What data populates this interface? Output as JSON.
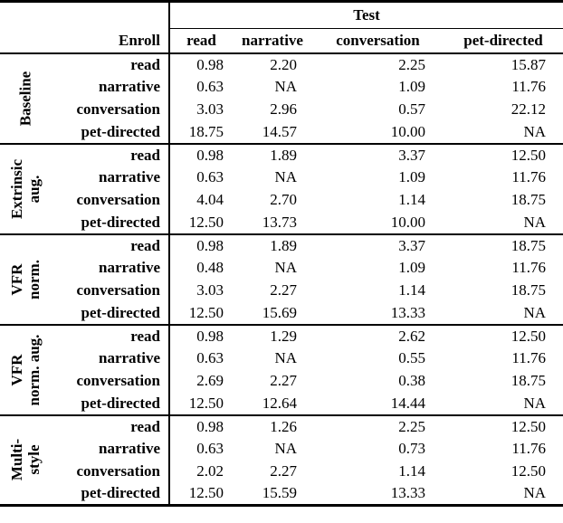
{
  "table": {
    "test_header": "Test",
    "enroll_header": "Enroll",
    "test_columns": [
      "read",
      "narrative",
      "conversation",
      "pet-directed"
    ],
    "groups": [
      {
        "label_lines": [
          "Baseline",
          ""
        ],
        "rows": [
          {
            "enroll": "read",
            "values": [
              "0.98",
              "2.20",
              "2.25",
              "15.87"
            ]
          },
          {
            "enroll": "narrative",
            "values": [
              "0.63",
              "NA",
              "1.09",
              "11.76"
            ]
          },
          {
            "enroll": "conversation",
            "values": [
              "3.03",
              "2.96",
              "0.57",
              "22.12"
            ]
          },
          {
            "enroll": "pet-directed",
            "values": [
              "18.75",
              "14.57",
              "10.00",
              "NA"
            ]
          }
        ]
      },
      {
        "label_lines": [
          "Extrinsic",
          "aug."
        ],
        "rows": [
          {
            "enroll": "read",
            "values": [
              "0.98",
              "1.89",
              "3.37",
              "12.50"
            ]
          },
          {
            "enroll": "narrative",
            "values": [
              "0.63",
              "NA",
              "1.09",
              "11.76"
            ]
          },
          {
            "enroll": "conversation",
            "values": [
              "4.04",
              "2.70",
              "1.14",
              "18.75"
            ]
          },
          {
            "enroll": "pet-directed",
            "values": [
              "12.50",
              "13.73",
              "10.00",
              "NA"
            ]
          }
        ]
      },
      {
        "label_lines": [
          "VFR",
          "norm."
        ],
        "rows": [
          {
            "enroll": "read",
            "values": [
              "0.98",
              "1.89",
              "3.37",
              "18.75"
            ]
          },
          {
            "enroll": "narrative",
            "values": [
              "0.48",
              "NA",
              "1.09",
              "11.76"
            ]
          },
          {
            "enroll": "conversation",
            "values": [
              "3.03",
              "2.27",
              "1.14",
              "18.75"
            ]
          },
          {
            "enroll": "pet-directed",
            "values": [
              "12.50",
              "15.69",
              "13.33",
              "NA"
            ]
          }
        ]
      },
      {
        "label_lines": [
          "VFR",
          "norm. aug."
        ],
        "rows": [
          {
            "enroll": "read",
            "values": [
              "0.98",
              "1.29",
              "2.62",
              "12.50"
            ]
          },
          {
            "enroll": "narrative",
            "values": [
              "0.63",
              "NA",
              "0.55",
              "11.76"
            ]
          },
          {
            "enroll": "conversation",
            "values": [
              "2.69",
              "2.27",
              "0.38",
              "18.75"
            ]
          },
          {
            "enroll": "pet-directed",
            "values": [
              "12.50",
              "12.64",
              "14.44",
              "NA"
            ]
          }
        ]
      },
      {
        "label_lines": [
          "Multi-",
          "style"
        ],
        "rows": [
          {
            "enroll": "read",
            "values": [
              "0.98",
              "1.26",
              "2.25",
              "12.50"
            ]
          },
          {
            "enroll": "narrative",
            "values": [
              "0.63",
              "NA",
              "0.73",
              "11.76"
            ]
          },
          {
            "enroll": "conversation",
            "values": [
              "2.02",
              "2.27",
              "1.14",
              "12.50"
            ]
          },
          {
            "enroll": "pet-directed",
            "values": [
              "12.50",
              "15.59",
              "13.33",
              "NA"
            ]
          }
        ]
      }
    ]
  },
  "colors": {
    "text": "#000000",
    "background": "#ffffff",
    "rule": "#000000"
  }
}
